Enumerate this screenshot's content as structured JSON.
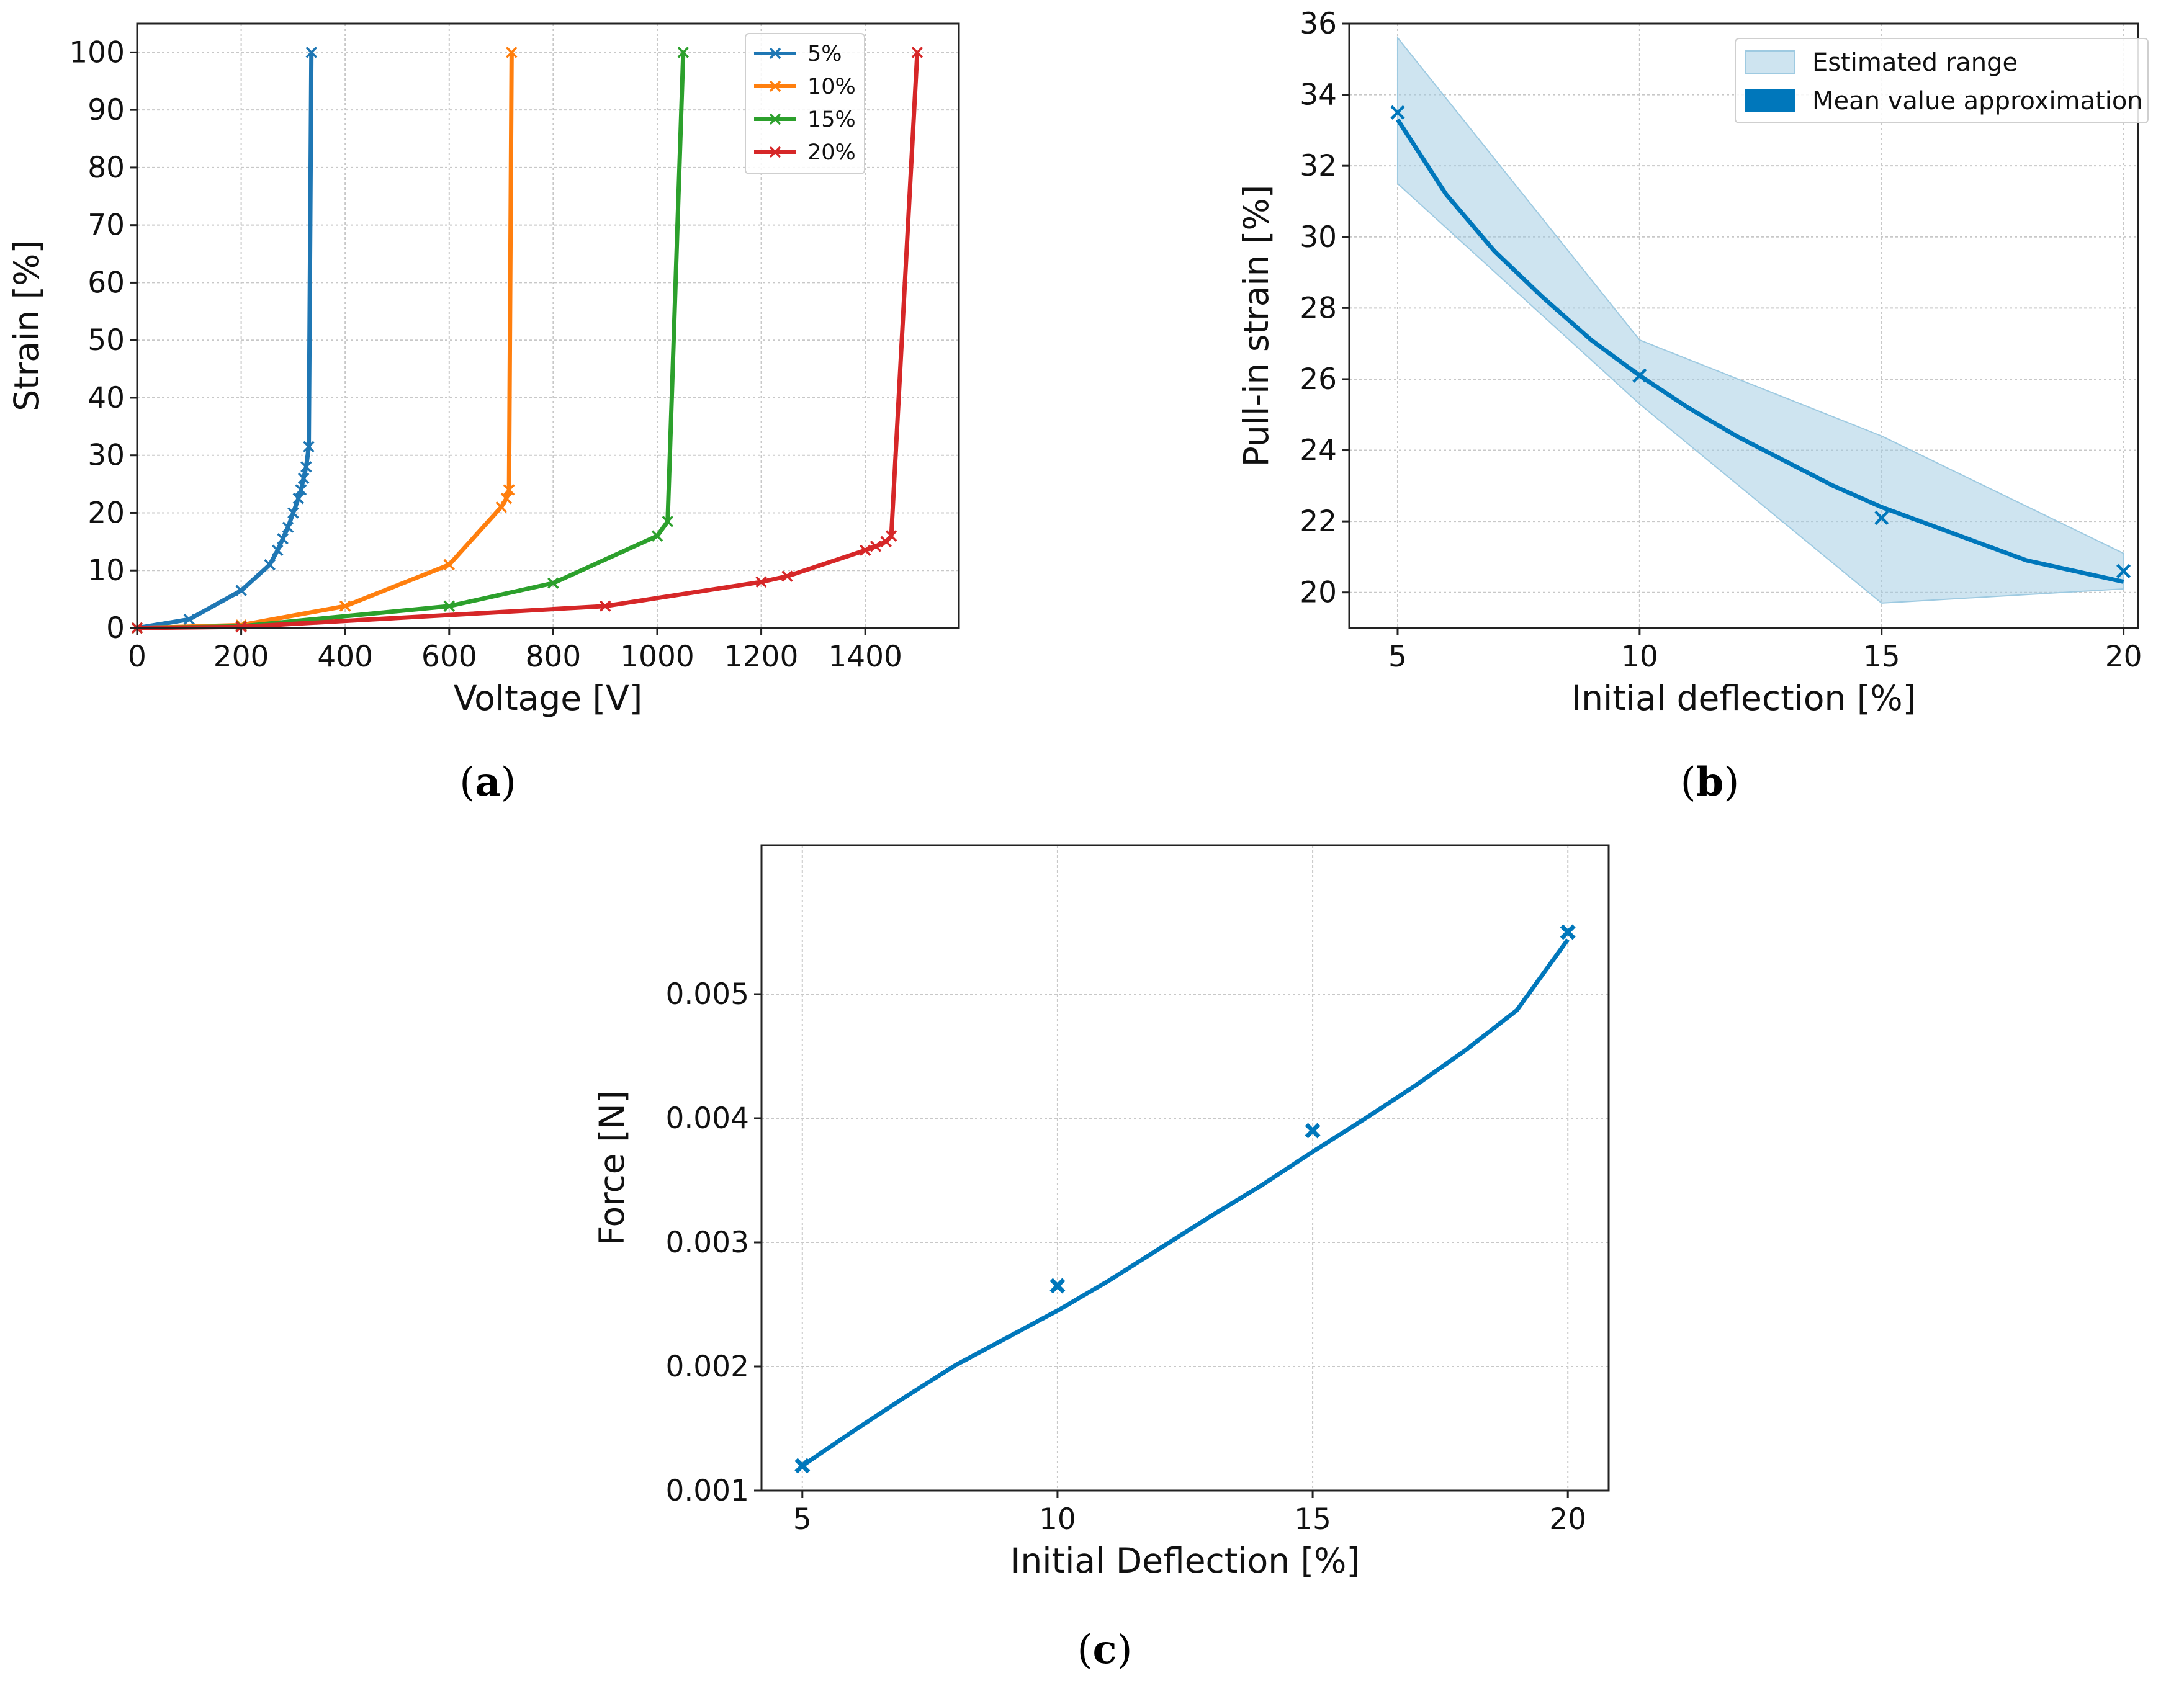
{
  "chart_data": [
    {
      "id": "a",
      "type": "line",
      "panel_label": "a",
      "xlabel": "Voltage [V]",
      "ylabel": "Strain [%]",
      "xlim": [
        0,
        1580
      ],
      "ylim": [
        0,
        105
      ],
      "xticks": [
        0,
        200,
        400,
        600,
        800,
        1000,
        1200,
        1400
      ],
      "yticks": [
        0,
        10,
        20,
        30,
        40,
        50,
        60,
        70,
        80,
        90,
        100
      ],
      "grid": true,
      "legend_position": "top-right",
      "series": [
        {
          "name": "5%",
          "color": "#1f77b4",
          "x": [
            0,
            100,
            200,
            255,
            270,
            280,
            290,
            300,
            310,
            315,
            320,
            325,
            330,
            335
          ],
          "y": [
            0,
            1.5,
            6.5,
            11,
            13.5,
            15.5,
            17.5,
            20,
            22.5,
            24,
            26,
            28,
            31.5,
            100
          ]
        },
        {
          "name": "10%",
          "color": "#ff7f0e",
          "x": [
            0,
            200,
            400,
            600,
            700,
            710,
            715,
            720
          ],
          "y": [
            0,
            0.5,
            3.8,
            11,
            21,
            22.5,
            24,
            100
          ]
        },
        {
          "name": "15%",
          "color": "#2ca02c",
          "x": [
            0,
            200,
            600,
            800,
            1000,
            1020,
            1050
          ],
          "y": [
            0,
            0.3,
            3.8,
            7.8,
            16,
            18.5,
            100
          ]
        },
        {
          "name": "20%",
          "color": "#d62728",
          "x": [
            0,
            200,
            900,
            1200,
            1250,
            1400,
            1420,
            1440,
            1450,
            1500
          ],
          "y": [
            0,
            0.2,
            3.8,
            8,
            9,
            13.5,
            14.2,
            15,
            16,
            100
          ]
        }
      ]
    },
    {
      "id": "b",
      "type": "line",
      "panel_label": "b",
      "xlabel": "Initial deflection [%]",
      "ylabel": "Pull-in strain [%]",
      "xlim": [
        4,
        20.3
      ],
      "ylim": [
        19,
        36
      ],
      "xticks": [
        5,
        10,
        15,
        20
      ],
      "yticks": [
        20,
        22,
        24,
        26,
        28,
        30,
        32,
        34,
        36
      ],
      "grid": true,
      "legend_position": "top-right",
      "legend": [
        "Estimated range",
        "Mean value approximation"
      ],
      "color": "#0077bb",
      "band_color": "#9ecae1",
      "points": {
        "x": [
          5,
          10,
          15,
          20
        ],
        "y": [
          33.5,
          26.1,
          22.1,
          20.6
        ]
      },
      "band": {
        "x": [
          5,
          10,
          15,
          20
        ],
        "lower": [
          31.5,
          25.3,
          19.7,
          20.1
        ],
        "upper": [
          35.6,
          27.1,
          24.4,
          21.1
        ]
      },
      "curve": {
        "x": [
          5,
          6,
          7,
          8,
          9,
          10,
          11,
          12,
          13,
          14,
          15,
          16,
          17,
          18,
          19,
          20
        ],
        "y": [
          33.3,
          31.2,
          29.6,
          28.3,
          27.1,
          26.1,
          25.2,
          24.4,
          23.7,
          23.0,
          22.4,
          21.9,
          21.4,
          20.9,
          20.6,
          20.3
        ]
      }
    },
    {
      "id": "c",
      "type": "line",
      "panel_label": "c",
      "xlabel": "Initial Deflection [%]",
      "ylabel": "Force [N]",
      "xlim": [
        4.2,
        20.8
      ],
      "ylim": [
        0.001,
        0.0062
      ],
      "xticks": [
        5,
        10,
        15,
        20
      ],
      "yticks": [
        0.001,
        0.002,
        0.003,
        0.004,
        0.005
      ],
      "ytick_labels": [
        "0.001",
        "0.002",
        "0.003",
        "0.004",
        "0.005"
      ],
      "grid": true,
      "color": "#0077bb",
      "points": {
        "x": [
          5,
          10,
          15,
          20
        ],
        "y": [
          0.0012,
          0.00265,
          0.0039,
          0.0055
        ]
      },
      "curve": {
        "x": [
          5,
          6,
          7,
          8,
          9,
          10,
          11,
          12,
          13,
          14,
          15,
          16,
          17,
          18,
          19,
          20
        ],
        "y": [
          0.0012,
          0.00148,
          0.00175,
          0.00201,
          0.00223,
          0.00245,
          0.00269,
          0.00295,
          0.00321,
          0.00346,
          0.00373,
          0.00399,
          0.00426,
          0.00455,
          0.00487,
          0.00544
        ]
      }
    }
  ]
}
